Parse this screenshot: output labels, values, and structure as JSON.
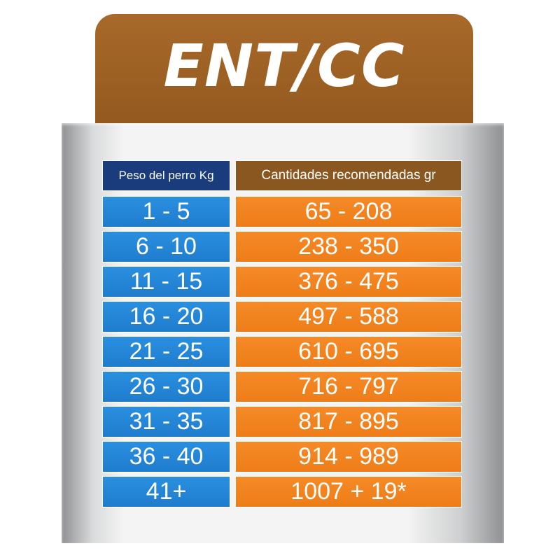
{
  "title": "ENT/CC",
  "colors": {
    "title_tab": "#9a5e22",
    "header_weight_bg": "#1a3c7c",
    "header_amount_bg": "#8b5720",
    "weight_cell_bg": "#1f7ccd",
    "amount_cell_bg": "#ee7d19"
  },
  "table": {
    "headers": {
      "weight": "Peso del perro Kg",
      "amount": "Cantidades recomendadas gr"
    },
    "rows": [
      {
        "weight": "1 - 5",
        "amount": "65 - 208"
      },
      {
        "weight": "6 - 10",
        "amount": "238 - 350"
      },
      {
        "weight": "11 - 15",
        "amount": "376 - 475"
      },
      {
        "weight": "16 - 20",
        "amount": "497 - 588"
      },
      {
        "weight": "21 - 25",
        "amount": "610 - 695"
      },
      {
        "weight": "26 - 30",
        "amount": "716 - 797"
      },
      {
        "weight": "31 - 35",
        "amount": "817 - 895"
      },
      {
        "weight": "36 - 40",
        "amount": "914 - 989"
      },
      {
        "weight": "41+",
        "amount": "1007 + 19*"
      }
    ]
  }
}
